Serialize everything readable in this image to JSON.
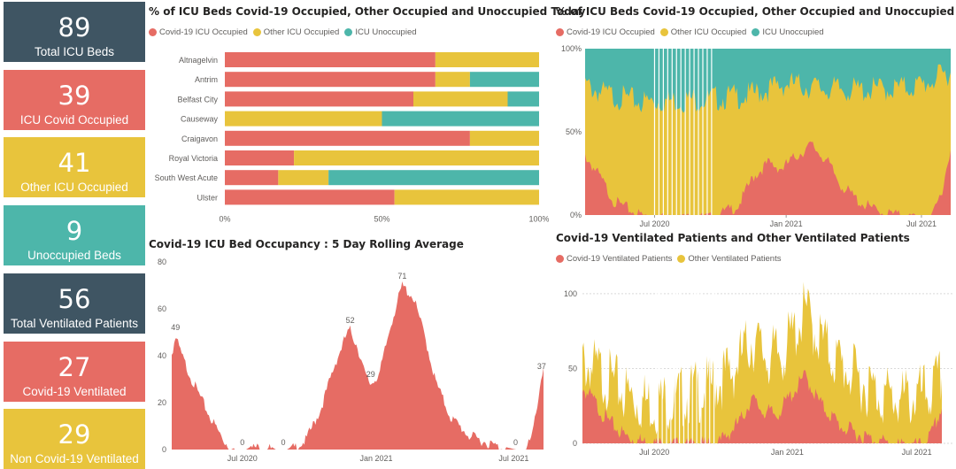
{
  "colors": {
    "covid": "#E66C64",
    "other": "#E8C43C",
    "unocc": "#4DB6AA",
    "slate": "#3F5563"
  },
  "cards": [
    {
      "value": "89",
      "label": "Total ICU Beds",
      "color": "#3F5563"
    },
    {
      "value": "39",
      "label": "ICU Covid Occupied",
      "color": "#E66C64"
    },
    {
      "value": "41",
      "label": "Other ICU Occupied",
      "color": "#E8C43C"
    },
    {
      "value": "9",
      "label": "Unoccupied Beds",
      "color": "#4DB6AA"
    },
    {
      "value": "56",
      "label": "Total Ventilated Patients",
      "color": "#3F5563"
    },
    {
      "value": "27",
      "label": "Covid-19 Ventilated",
      "color": "#E66C64"
    },
    {
      "value": "29",
      "label": "Non Covid-19 Ventilated",
      "color": "#E8C43C"
    }
  ],
  "legend_icu": [
    "Covid-19 ICU Occupied",
    "Other ICU Occupied",
    "ICU Unoccupied"
  ],
  "legend_vent": [
    "Covid-19 Ventilated Patients",
    "Other Ventilated Patients"
  ],
  "chart_data": [
    {
      "type": "bar",
      "orientation": "horizontal-stacked-100",
      "title": "% of ICU Beds Covid-19 Occupied, Other Occupied and Unoccupied Today",
      "categories": [
        "Altnagelvin",
        "Antrim",
        "Belfast City",
        "Causeway",
        "Craigavon",
        "Royal Victoria",
        "South West Acute",
        "Ulster"
      ],
      "series": [
        {
          "name": "Covid-19 ICU Occupied",
          "values": [
            0.67,
            0.67,
            0.6,
            0.0,
            0.78,
            0.22,
            0.17,
            0.54
          ]
        },
        {
          "name": "Other ICU Occupied",
          "values": [
            0.33,
            0.11,
            0.3,
            0.5,
            0.22,
            0.78,
            0.16,
            0.46
          ]
        },
        {
          "name": "ICU Unoccupied",
          "values": [
            0.0,
            0.22,
            0.1,
            0.5,
            0.0,
            0.0,
            0.67,
            0.0
          ]
        }
      ],
      "xticks": [
        "0%",
        "50%",
        "100%"
      ]
    },
    {
      "type": "area",
      "stacked": "100%",
      "title": "% of ICU Beds Covid-19 Occupied, Other Occupied and Unoccupied",
      "x_range": [
        "2020-03",
        "2021-08"
      ],
      "xticks": [
        "Jul 2020",
        "Jan 2021",
        "Jul 2021"
      ],
      "yticks": [
        "0%",
        "50%",
        "100%"
      ],
      "series_names": [
        "Covid-19 ICU Occupied",
        "Other ICU Occupied",
        "ICU Unoccupied"
      ],
      "covid_share_keyframes": [
        [
          0,
          0.38
        ],
        [
          0.04,
          0.25
        ],
        [
          0.08,
          0.1
        ],
        [
          0.14,
          0.03
        ],
        [
          0.18,
          0.0
        ],
        [
          0.35,
          0.0
        ],
        [
          0.42,
          0.08
        ],
        [
          0.46,
          0.25
        ],
        [
          0.5,
          0.33
        ],
        [
          0.54,
          0.3
        ],
        [
          0.58,
          0.38
        ],
        [
          0.62,
          0.44
        ],
        [
          0.66,
          0.35
        ],
        [
          0.7,
          0.2
        ],
        [
          0.75,
          0.1
        ],
        [
          0.8,
          0.04
        ],
        [
          0.9,
          0.0
        ],
        [
          0.95,
          0.0
        ],
        [
          0.98,
          0.2
        ],
        [
          1.0,
          0.44
        ]
      ],
      "occupied_share_keyframes": [
        [
          0,
          0.82
        ],
        [
          0.05,
          0.77
        ],
        [
          0.15,
          0.72
        ],
        [
          0.25,
          0.73
        ],
        [
          0.35,
          0.74
        ],
        [
          0.45,
          0.76
        ],
        [
          0.55,
          0.83
        ],
        [
          0.65,
          0.8
        ],
        [
          0.75,
          0.79
        ],
        [
          0.85,
          0.8
        ],
        [
          0.92,
          0.82
        ],
        [
          1.0,
          0.9
        ]
      ]
    },
    {
      "type": "area",
      "title": "Covid-19 ICU Bed Occupancy : 5 Day Rolling Average",
      "ylim": [
        0,
        80
      ],
      "yticks": [
        0,
        20,
        40,
        60,
        80
      ],
      "xticks": [
        "Jul 2020",
        "Jan 2021",
        "Jul 2021"
      ],
      "keyframes": [
        [
          0,
          42
        ],
        [
          0.01,
          49
        ],
        [
          0.03,
          40
        ],
        [
          0.06,
          29
        ],
        [
          0.1,
          16
        ],
        [
          0.14,
          5
        ],
        [
          0.17,
          0
        ],
        [
          0.2,
          0
        ],
        [
          0.22,
          2
        ],
        [
          0.26,
          2
        ],
        [
          0.28,
          0
        ],
        [
          0.31,
          0
        ],
        [
          0.36,
          5
        ],
        [
          0.4,
          18
        ],
        [
          0.44,
          38
        ],
        [
          0.47,
          50
        ],
        [
          0.48,
          52
        ],
        [
          0.5,
          45
        ],
        [
          0.52,
          33
        ],
        [
          0.535,
          29
        ],
        [
          0.56,
          34
        ],
        [
          0.59,
          55
        ],
        [
          0.62,
          71
        ],
        [
          0.65,
          66
        ],
        [
          0.68,
          50
        ],
        [
          0.71,
          30
        ],
        [
          0.75,
          15
        ],
        [
          0.8,
          7
        ],
        [
          0.85,
          4
        ],
        [
          0.9,
          1
        ],
        [
          0.925,
          0
        ],
        [
          0.95,
          0
        ],
        [
          0.97,
          7
        ],
        [
          0.99,
          28
        ],
        [
          1.0,
          37
        ]
      ],
      "data_labels": [
        {
          "at": 0.01,
          "label": "49"
        },
        {
          "at": 0.19,
          "label": "0"
        },
        {
          "at": 0.3,
          "label": "0"
        },
        {
          "at": 0.48,
          "label": "52"
        },
        {
          "at": 0.535,
          "label": "29"
        },
        {
          "at": 0.62,
          "label": "71"
        },
        {
          "at": 0.925,
          "label": "0"
        },
        {
          "at": 0.995,
          "label": "37"
        }
      ]
    },
    {
      "type": "area",
      "stacked": true,
      "title": "Covid-19 Ventilated Patients and Other Ventilated Patients",
      "ylim": [
        0,
        110
      ],
      "yticks": [
        0,
        50,
        100
      ],
      "xticks": [
        "Jul 2020",
        "Jan 2021",
        "Jul 2021"
      ],
      "series_names": [
        "Covid-19 Ventilated Patients",
        "Other Ventilated Patients"
      ],
      "covid_keyframes": [
        [
          0,
          40
        ],
        [
          0.03,
          32
        ],
        [
          0.07,
          18
        ],
        [
          0.12,
          8
        ],
        [
          0.18,
          3
        ],
        [
          0.3,
          1
        ],
        [
          0.38,
          3
        ],
        [
          0.44,
          18
        ],
        [
          0.47,
          33
        ],
        [
          0.5,
          25
        ],
        [
          0.54,
          22
        ],
        [
          0.58,
          35
        ],
        [
          0.62,
          48
        ],
        [
          0.66,
          30
        ],
        [
          0.72,
          14
        ],
        [
          0.8,
          6
        ],
        [
          0.88,
          1
        ],
        [
          0.94,
          1
        ],
        [
          0.97,
          8
        ],
        [
          1.0,
          27
        ]
      ],
      "total_keyframes": [
        [
          0,
          65
        ],
        [
          0.05,
          58
        ],
        [
          0.1,
          48
        ],
        [
          0.15,
          40
        ],
        [
          0.2,
          38
        ],
        [
          0.28,
          42
        ],
        [
          0.35,
          48
        ],
        [
          0.42,
          60
        ],
        [
          0.47,
          80
        ],
        [
          0.52,
          68
        ],
        [
          0.56,
          72
        ],
        [
          0.6,
          90
        ],
        [
          0.62,
          100
        ],
        [
          0.65,
          85
        ],
        [
          0.7,
          68
        ],
        [
          0.76,
          55
        ],
        [
          0.82,
          45
        ],
        [
          0.88,
          40
        ],
        [
          0.93,
          42
        ],
        [
          0.97,
          45
        ],
        [
          1.0,
          56
        ]
      ]
    }
  ]
}
